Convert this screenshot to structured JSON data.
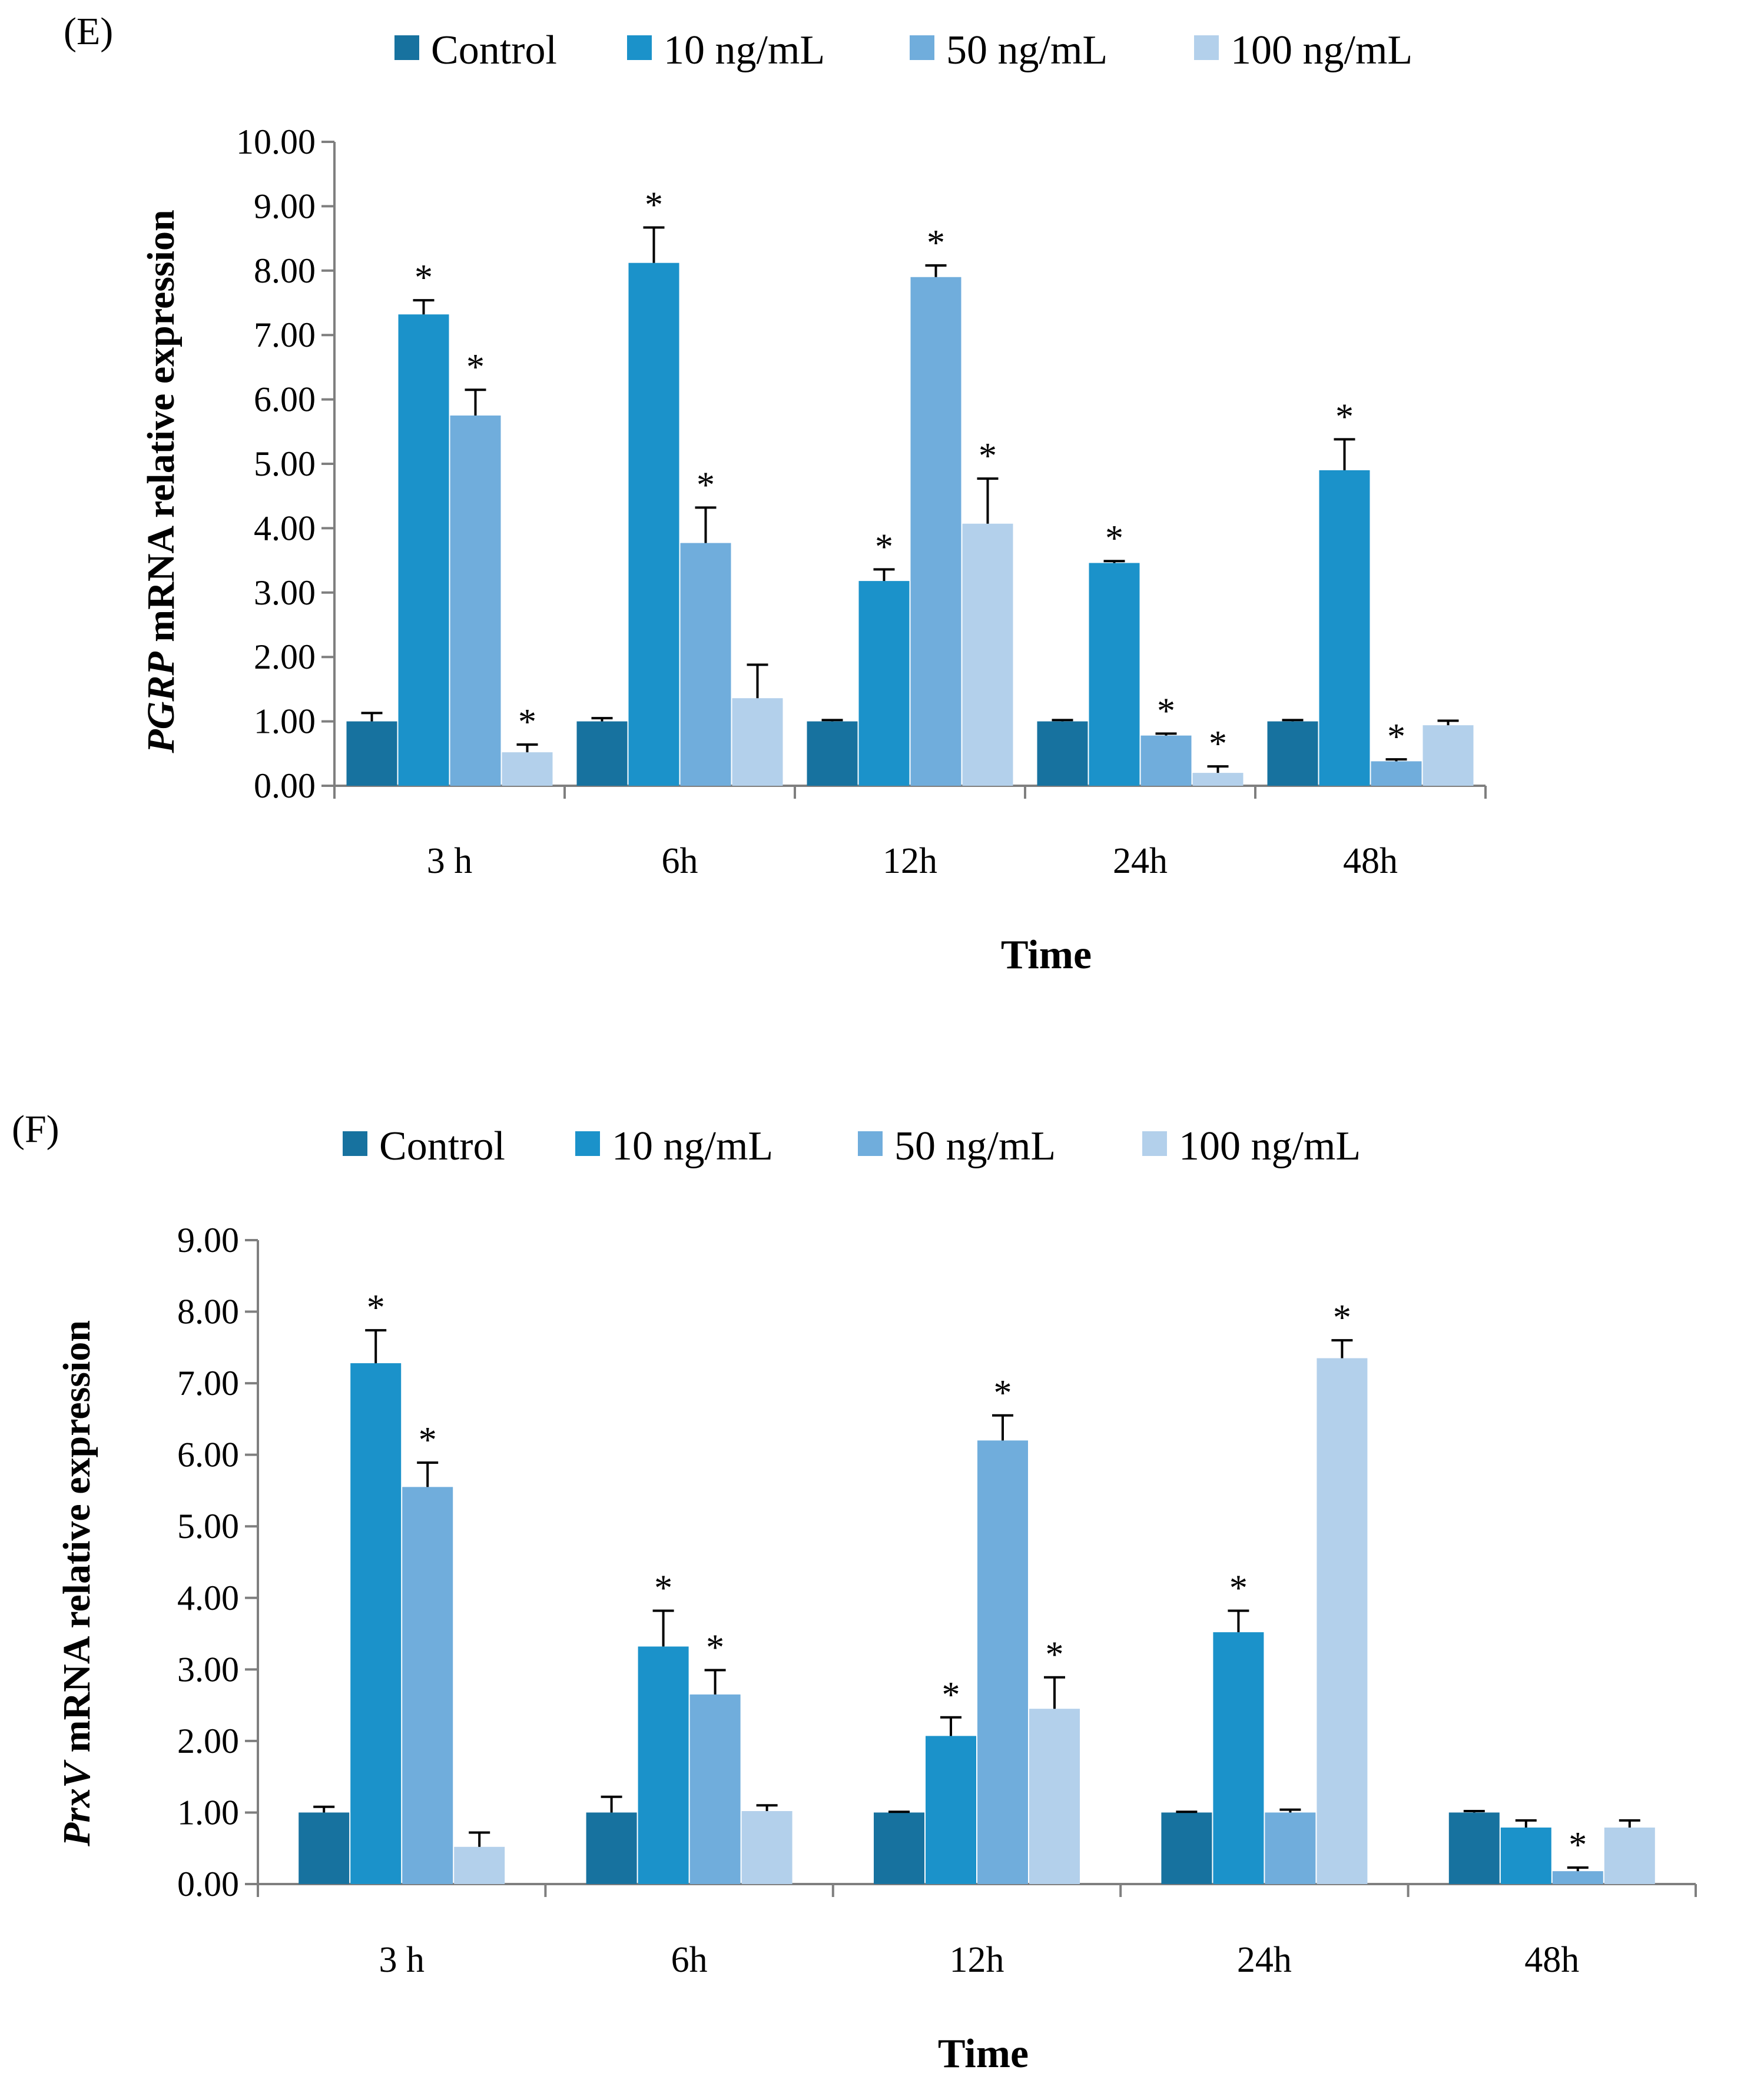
{
  "colors": {
    "Control": "#17729f",
    "10 ng/mL": "#1b92ca",
    "50 ng/mL": "#70addc",
    "100 ng/mL": "#b3d0eb"
  },
  "chart_data": [
    {
      "type": "bar",
      "panel_label": "(E)",
      "ylabel_italic": "PGRP",
      "ylabel_rest": " mRNA relative expression",
      "xlabel": "Time",
      "categories": [
        "3 h",
        "6h",
        "12h",
        "24h",
        "48h"
      ],
      "ylim": [
        0,
        10
      ],
      "ytick_step": 1,
      "ytick_labels": [
        "0.00",
        "1.00",
        "2.00",
        "3.00",
        "4.00",
        "5.00",
        "6.00",
        "7.00",
        "8.00",
        "9.00",
        "10.00"
      ],
      "legend": [
        "Control",
        "10 ng/mL",
        "50 ng/mL",
        "100 ng/mL"
      ],
      "series": [
        {
          "name": "Control",
          "values": [
            1.0,
            1.0,
            1.0,
            1.0,
            1.0
          ],
          "errors": [
            0.13,
            0.05,
            0.02,
            0.02,
            0.02
          ],
          "sig": [
            false,
            false,
            false,
            false,
            false
          ]
        },
        {
          "name": "10 ng/mL",
          "values": [
            7.32,
            8.12,
            3.18,
            3.46,
            4.9
          ],
          "errors": [
            0.22,
            0.55,
            0.18,
            0.03,
            0.48
          ],
          "sig": [
            true,
            true,
            true,
            true,
            true
          ]
        },
        {
          "name": "50 ng/mL",
          "values": [
            5.75,
            3.77,
            7.9,
            0.78,
            0.38
          ],
          "errors": [
            0.4,
            0.55,
            0.18,
            0.03,
            0.03
          ],
          "sig": [
            true,
            true,
            true,
            true,
            true
          ]
        },
        {
          "name": "100 ng/mL",
          "values": [
            0.52,
            1.36,
            4.07,
            0.2,
            0.94
          ],
          "errors": [
            0.12,
            0.52,
            0.7,
            0.1,
            0.07
          ],
          "sig": [
            true,
            false,
            true,
            true,
            false
          ]
        }
      ],
      "sig_marker": "*"
    },
    {
      "type": "bar",
      "panel_label": "(F)",
      "ylabel_italic": "PrxV",
      "ylabel_rest": " mRNA relative expression",
      "xlabel": "Time",
      "categories": [
        "3 h",
        "6h",
        "12h",
        "24h",
        "48h"
      ],
      "ylim": [
        0,
        9
      ],
      "ytick_step": 1,
      "ytick_labels": [
        "0.00",
        "1.00",
        "2.00",
        "3.00",
        "4.00",
        "5.00",
        "6.00",
        "7.00",
        "8.00",
        "9.00"
      ],
      "legend": [
        "Control",
        "10 ng/mL",
        "50 ng/mL",
        "100 ng/mL"
      ],
      "series": [
        {
          "name": "Control",
          "values": [
            1.0,
            1.0,
            1.0,
            1.0,
            1.0
          ],
          "errors": [
            0.08,
            0.22,
            0.01,
            0.01,
            0.02
          ],
          "sig": [
            false,
            false,
            false,
            false,
            false
          ]
        },
        {
          "name": "10 ng/mL",
          "values": [
            7.28,
            3.32,
            2.07,
            3.52,
            0.79
          ],
          "errors": [
            0.46,
            0.5,
            0.26,
            0.3,
            0.1
          ],
          "sig": [
            true,
            true,
            true,
            true,
            false
          ]
        },
        {
          "name": "50 ng/mL",
          "values": [
            5.55,
            2.65,
            6.2,
            1.0,
            0.18
          ],
          "errors": [
            0.34,
            0.34,
            0.35,
            0.04,
            0.05
          ],
          "sig": [
            true,
            true,
            true,
            false,
            true
          ]
        },
        {
          "name": "100 ng/mL",
          "values": [
            0.52,
            1.02,
            2.45,
            7.35,
            0.79
          ],
          "errors": [
            0.2,
            0.08,
            0.44,
            0.25,
            0.1
          ],
          "sig": [
            false,
            false,
            true,
            true,
            false
          ]
        }
      ],
      "sig_marker": "*"
    }
  ]
}
